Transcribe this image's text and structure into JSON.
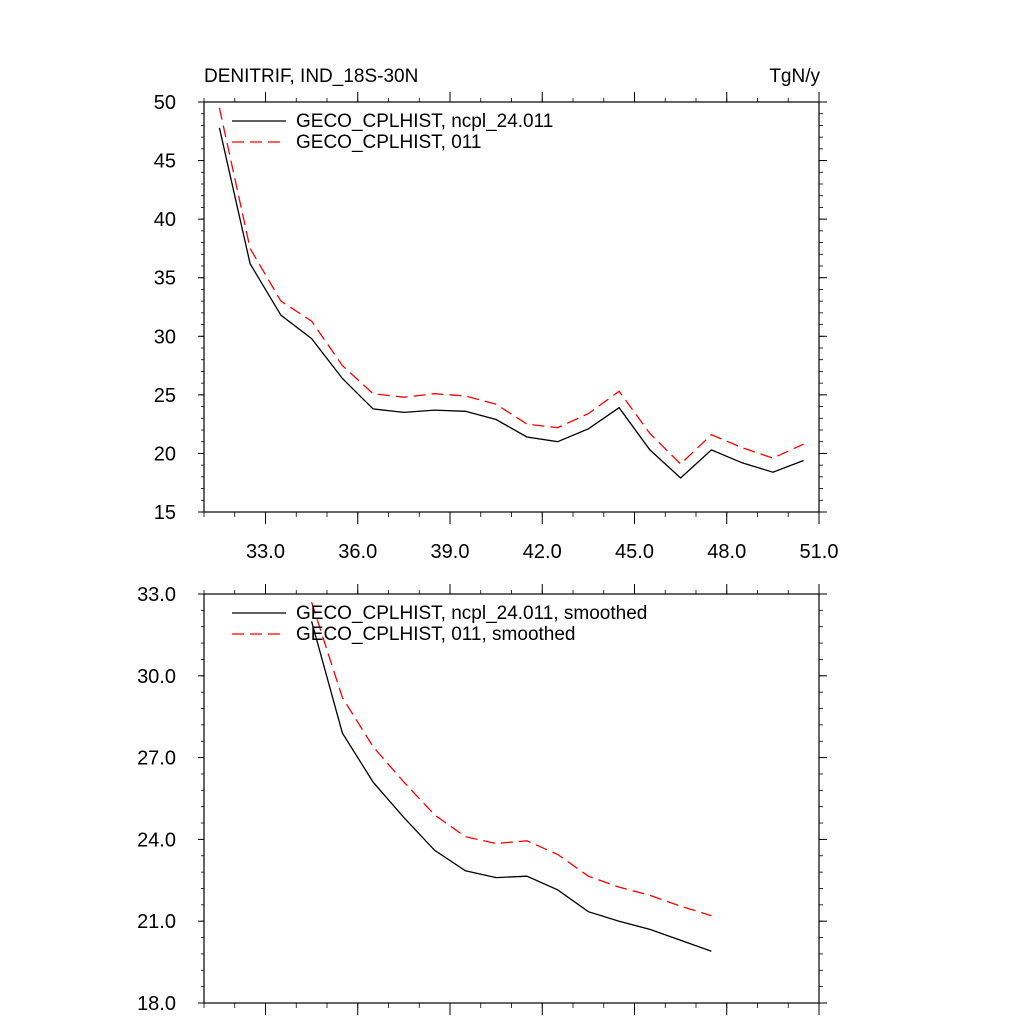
{
  "chart_data": [
    {
      "type": "line",
      "title": "DENITRIF, IND_18S-30N",
      "units": "TgN/y",
      "xlim": [
        31.0,
        51.0
      ],
      "ylim": [
        15,
        50
      ],
      "x_ticks": [
        33,
        36,
        39,
        42,
        45,
        48,
        51
      ],
      "x_tick_labels": [
        "33.0",
        "36.0",
        "39.0",
        "42.0",
        "45.0",
        "48.0",
        "51.0"
      ],
      "y_ticks": [
        15,
        20,
        25,
        30,
        35,
        40,
        45,
        50
      ],
      "y_tick_labels": [
        "15",
        "20",
        "25",
        "30",
        "35",
        "40",
        "45",
        "50"
      ],
      "legend_position": "top-left",
      "series": [
        {
          "name": "GECO_CPLHIST, ncpl_24.011",
          "color": "#000000",
          "dash": "solid",
          "x": [
            31.5,
            32.5,
            33.5,
            34.5,
            35.5,
            36.5,
            37.5,
            38.5,
            39.5,
            40.5,
            41.5,
            42.5,
            43.5,
            44.5,
            45.5,
            46.5,
            47.5,
            48.5,
            49.5,
            50.5
          ],
          "values": [
            47.8,
            36.2,
            31.8,
            29.8,
            26.4,
            23.8,
            23.5,
            23.7,
            23.6,
            22.9,
            21.4,
            21.0,
            22.1,
            23.9,
            20.3,
            17.9,
            20.3,
            19.2,
            18.4,
            19.4
          ]
        },
        {
          "name": "GECO_CPLHIST, 011",
          "color": "#ff0000",
          "dash": "dashed",
          "x": [
            31.5,
            32.5,
            33.5,
            34.5,
            35.5,
            36.5,
            37.5,
            38.5,
            39.5,
            40.5,
            41.5,
            42.5,
            43.5,
            44.5,
            45.5,
            46.5,
            47.5,
            48.5,
            49.5,
            50.5
          ],
          "values": [
            49.5,
            37.5,
            33.0,
            31.3,
            27.5,
            25.1,
            24.8,
            25.1,
            24.9,
            24.2,
            22.5,
            22.2,
            23.4,
            25.3,
            21.7,
            19.1,
            21.6,
            20.5,
            19.6,
            20.8
          ]
        }
      ]
    },
    {
      "type": "line",
      "xlim": [
        31.0,
        51.0
      ],
      "ylim": [
        18.0,
        33.0
      ],
      "y_ticks": [
        18,
        21,
        24,
        27,
        30,
        33
      ],
      "y_tick_labels": [
        "18.0",
        "21.0",
        "24.0",
        "27.0",
        "30.0",
        "33.0"
      ],
      "x_ticks": [
        33,
        36,
        39,
        42,
        45,
        48,
        51
      ],
      "legend_position": "top-left",
      "series": [
        {
          "name": "GECO_CPLHIST, ncpl_24.011, smoothed",
          "color": "#000000",
          "dash": "solid",
          "x": [
            34.5,
            35.5,
            36.5,
            37.5,
            38.5,
            39.5,
            40.5,
            41.5,
            42.5,
            43.5,
            44.5,
            45.5,
            46.5,
            47.5
          ],
          "values": [
            32.0,
            27.9,
            26.1,
            24.8,
            23.6,
            22.85,
            22.6,
            22.65,
            22.15,
            21.35,
            21.0,
            20.7,
            20.3,
            19.9
          ]
        },
        {
          "name": "GECO_CPLHIST, 011, smoothed",
          "color": "#ff0000",
          "dash": "dashed",
          "x": [
            34.5,
            35.5,
            36.5,
            37.5,
            38.5,
            39.5,
            40.5,
            41.5,
            42.5,
            43.5,
            44.5,
            45.5,
            46.5,
            47.5
          ],
          "values": [
            32.7,
            29.2,
            27.4,
            26.1,
            24.9,
            24.1,
            23.85,
            23.95,
            23.45,
            22.65,
            22.25,
            21.95,
            21.55,
            21.2
          ]
        }
      ]
    }
  ]
}
